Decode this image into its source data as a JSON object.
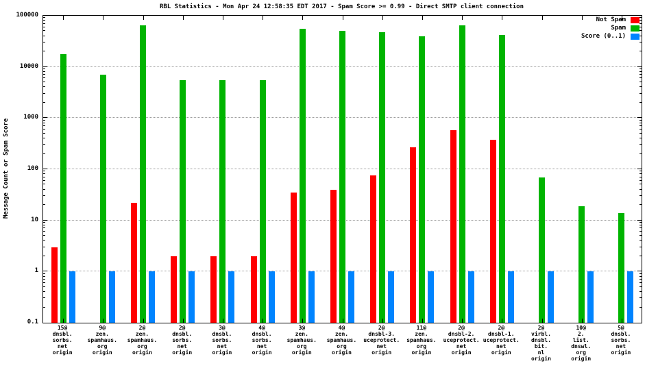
{
  "title": "RBL Statistics - Mon Apr 24 12:58:35 EDT 2017 - Spam Score >= 0.99 - Direct SMTP client connection",
  "ylabel": "Message Count or Spam Score",
  "legend": [
    {
      "label": "Not Spam",
      "color": "#ff0000"
    },
    {
      "label": "Spam",
      "color": "#00b400"
    },
    {
      "label": "Score (0..1)",
      "color": "#0084ff"
    }
  ],
  "chart_data": {
    "type": "bar",
    "scale": "log",
    "title": "RBL Statistics - Mon Apr 24 12:58:35 EDT 2017 - Spam Score >= 0.99 - Direct SMTP client connection",
    "ylabel": "Message Count or Spam Score",
    "ylim": [
      0.1,
      100000
    ],
    "yticks": [
      0.1,
      1,
      10,
      100,
      1000,
      10000,
      100000
    ],
    "grid": true,
    "legend_position": "top-right",
    "categories": [
      [
        "15@",
        "dnsbl.",
        "sorbs.",
        "net",
        "origin"
      ],
      [
        "9@",
        "zen.",
        "spamhaus.",
        "org",
        "origin"
      ],
      [
        "2@",
        "zen.",
        "spamhaus.",
        "org",
        "origin"
      ],
      [
        "2@",
        "dnsbl.",
        "sorbs.",
        "net",
        "origin"
      ],
      [
        "3@",
        "dnsbl.",
        "sorbs.",
        "net",
        "origin"
      ],
      [
        "4@",
        "dnsbl.",
        "sorbs.",
        "net",
        "origin"
      ],
      [
        "3@",
        "zen.",
        "spamhaus.",
        "org",
        "origin"
      ],
      [
        "4@",
        "zen.",
        "spamhaus.",
        "org",
        "origin"
      ],
      [
        "2@",
        "dnsbl-3.",
        "uceprotect.",
        "net",
        "origin"
      ],
      [
        "11@",
        "zen.",
        "spamhaus.",
        "org",
        "origin"
      ],
      [
        "2@",
        "dnsbl-2.",
        "uceprotect.",
        "net",
        "origin"
      ],
      [
        "2@",
        "dnsbl-1.",
        "uceprotect.",
        "net",
        "origin"
      ],
      [
        "2@",
        "virbl.",
        "dnsbl.",
        "bit.",
        "nl",
        "origin"
      ],
      [
        "10@",
        "2.",
        "list.",
        "dnswl.",
        "org",
        "origin"
      ],
      [
        "5@",
        "dnsbl.",
        "sorbs.",
        "net",
        "origin"
      ]
    ],
    "series": [
      {
        "name": "Not Spam",
        "color": "#ff0000",
        "values": [
          3,
          null,
          22,
          2,
          2,
          2,
          35,
          40,
          75,
          270,
          580,
          380,
          null,
          null,
          null
        ]
      },
      {
        "name": "Spam",
        "color": "#00b400",
        "values": [
          18000,
          7000,
          65000,
          5500,
          5500,
          5500,
          55000,
          50000,
          48000,
          40000,
          65000,
          42000,
          70,
          19,
          14
        ]
      },
      {
        "name": "Score (0..1)",
        "color": "#0084ff",
        "values": [
          1,
          1,
          1,
          1,
          1,
          1,
          1,
          1,
          1,
          1,
          1,
          1,
          1,
          1,
          1
        ]
      }
    ]
  }
}
